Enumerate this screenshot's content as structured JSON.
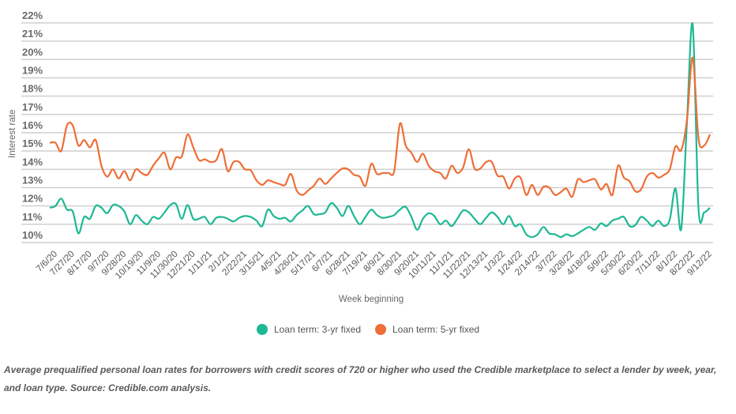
{
  "chart_data": {
    "type": "line",
    "xlabel": "Week beginning",
    "ylabel": "Interest rate",
    "ylim": [
      10,
      22
    ],
    "y_ticks": [
      "10%",
      "11%",
      "12%",
      "13%",
      "14%",
      "15%",
      "16%",
      "17%",
      "18%",
      "19%",
      "20%",
      "21%",
      "22%"
    ],
    "grid": "horizontal",
    "legend_position": "bottom",
    "x": [
      "7/6/20",
      "7/13/20",
      "7/20/20",
      "7/27/20",
      "8/3/20",
      "8/10/20",
      "8/17/20",
      "8/24/20",
      "8/31/20",
      "9/7/20",
      "9/14/20",
      "9/21/20",
      "9/28/20",
      "10/5/20",
      "10/12/20",
      "10/19/20",
      "10/26/20",
      "11/2/20",
      "11/9/20",
      "11/16/20",
      "11/23/20",
      "11/30/20",
      "12/7/20",
      "12/14/20",
      "12/21/20",
      "12/28/20",
      "1/4/21",
      "1/11/21",
      "1/18/21",
      "1/25/21",
      "2/1/21",
      "2/8/21",
      "2/15/21",
      "2/22/21",
      "3/1/21",
      "3/8/21",
      "3/15/21",
      "3/22/21",
      "3/29/21",
      "4/5/21",
      "4/12/21",
      "4/19/21",
      "4/26/21",
      "5/3/21",
      "5/10/21",
      "5/17/21",
      "5/24/21",
      "5/31/21",
      "6/7/21",
      "6/14/21",
      "6/21/21",
      "6/28/21",
      "7/5/21",
      "7/12/21",
      "7/19/21",
      "7/26/21",
      "8/2/21",
      "8/9/21",
      "8/16/21",
      "8/23/21",
      "8/30/21",
      "9/6/21",
      "9/13/21",
      "9/20/21",
      "9/27/21",
      "10/4/21",
      "10/11/21",
      "10/18/21",
      "10/25/21",
      "11/1/21",
      "11/8/21",
      "11/15/21",
      "11/22/21",
      "11/29/21",
      "12/6/21",
      "12/13/21",
      "12/20/21",
      "12/27/21",
      "1/3/22",
      "1/10/22",
      "1/17/22",
      "1/24/22",
      "1/31/22",
      "2/7/22",
      "2/14/22",
      "2/21/22",
      "2/28/22",
      "3/7/22",
      "3/14/22",
      "3/21/22",
      "3/28/22",
      "4/4/22",
      "4/11/22",
      "4/18/22",
      "4/25/22",
      "5/2/22",
      "5/9/22",
      "5/16/22",
      "5/23/22",
      "5/30/22",
      "6/6/22",
      "6/13/22",
      "6/20/22",
      "6/27/22",
      "7/4/22",
      "7/11/22",
      "7/18/22",
      "7/25/22",
      "8/1/22",
      "8/8/22",
      "8/15/22",
      "8/22/22",
      "8/29/22",
      "9/5/22",
      "9/12/22",
      "9/19/22"
    ],
    "x_tick_every": 3,
    "series": [
      {
        "name": "Loan term: 3-yr fixed",
        "color": "#1db894",
        "values": [
          11.9,
          12.0,
          12.4,
          11.8,
          11.7,
          10.5,
          11.4,
          11.3,
          12.0,
          11.9,
          11.6,
          12.05,
          12.0,
          11.7,
          11.0,
          11.5,
          11.2,
          11.0,
          11.4,
          11.3,
          11.65,
          12.05,
          12.1,
          11.3,
          12.05,
          11.3,
          11.3,
          11.4,
          11.0,
          11.35,
          11.4,
          11.3,
          11.15,
          11.35,
          11.45,
          11.4,
          11.2,
          10.9,
          11.8,
          11.45,
          11.3,
          11.35,
          11.15,
          11.5,
          11.75,
          12.0,
          11.55,
          11.55,
          11.65,
          12.15,
          11.9,
          11.45,
          12.0,
          11.45,
          11.0,
          11.4,
          11.8,
          11.5,
          11.35,
          11.4,
          11.5,
          11.8,
          11.95,
          11.4,
          10.7,
          11.3,
          11.6,
          11.45,
          11.0,
          11.2,
          10.9,
          11.3,
          11.75,
          11.65,
          11.3,
          11.0,
          11.35,
          11.65,
          11.4,
          11.0,
          11.45,
          10.9,
          11.0,
          10.45,
          10.3,
          10.45,
          10.85,
          10.5,
          10.45,
          10.3,
          10.45,
          10.35,
          10.5,
          10.7,
          10.85,
          10.7,
          11.05,
          10.9,
          11.2,
          11.3,
          11.4,
          10.9,
          10.95,
          11.4,
          11.2,
          10.9,
          11.2,
          10.9,
          11.25,
          12.95,
          10.75,
          16.6,
          21.9,
          11.9,
          11.65,
          11.9
        ]
      },
      {
        "name": "Loan term: 5-yr fixed",
        "color": "#ee6e36",
        "values": [
          15.45,
          15.45,
          15.0,
          16.4,
          16.4,
          15.3,
          15.6,
          15.2,
          15.6,
          14.2,
          13.6,
          14.0,
          13.5,
          13.9,
          13.4,
          14.0,
          13.8,
          13.7,
          14.2,
          14.6,
          14.9,
          14.0,
          14.65,
          14.7,
          15.9,
          15.2,
          14.5,
          14.55,
          14.4,
          14.5,
          15.1,
          13.9,
          14.4,
          14.4,
          14.0,
          13.95,
          13.4,
          13.15,
          13.4,
          13.3,
          13.2,
          13.15,
          13.75,
          12.85,
          12.6,
          12.85,
          13.1,
          13.5,
          13.2,
          13.5,
          13.8,
          14.05,
          14.0,
          13.7,
          13.6,
          13.1,
          14.3,
          13.75,
          13.8,
          13.8,
          13.9,
          16.5,
          15.3,
          14.9,
          14.4,
          14.85,
          14.2,
          13.9,
          13.8,
          13.5,
          14.2,
          13.8,
          14.1,
          15.1,
          14.05,
          14.05,
          14.4,
          14.4,
          13.65,
          13.6,
          12.95,
          13.5,
          13.55,
          12.6,
          13.15,
          12.6,
          13.05,
          13.0,
          12.6,
          12.75,
          12.95,
          12.5,
          13.45,
          13.3,
          13.4,
          13.45,
          12.9,
          13.2,
          12.6,
          14.2,
          13.55,
          13.35,
          12.8,
          12.9,
          13.6,
          13.8,
          13.55,
          13.7,
          14.0,
          15.25,
          15.05,
          16.7,
          20.1,
          15.7,
          15.3,
          15.9
        ]
      }
    ]
  },
  "caption": "Average prequalified personal loan rates for borrowers with credit scores of 720 or higher who used the Credible marketplace to select a lender by week, year, and loan type. Source: Credible.com analysis."
}
